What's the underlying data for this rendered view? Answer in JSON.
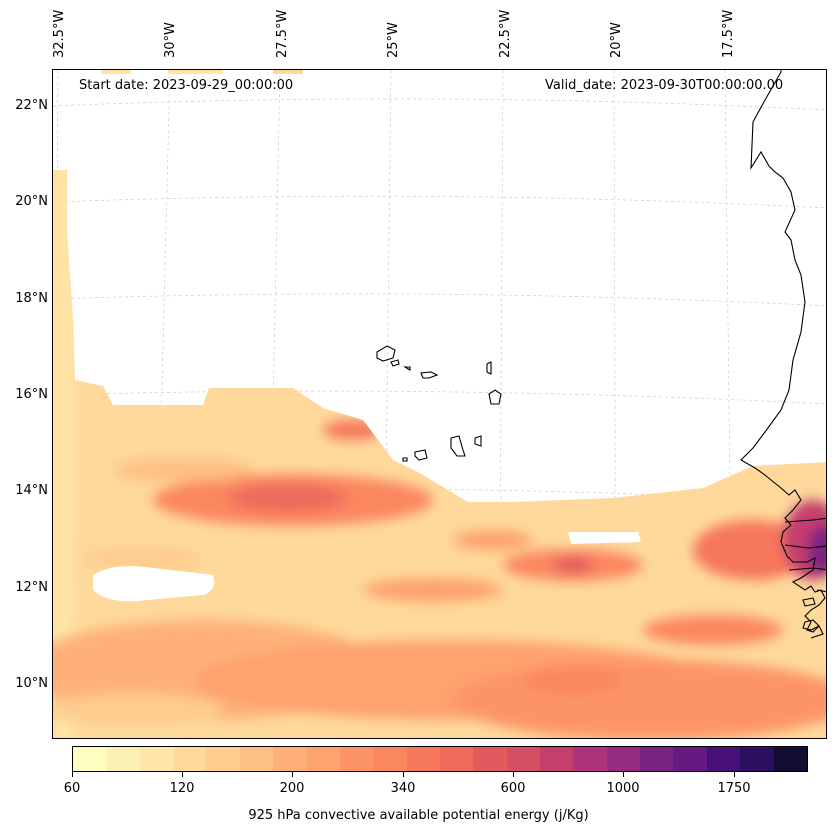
{
  "map": {
    "start_date": "Start date: 2023-09-29_00:00:00",
    "valid_date": "Valid_date: 2023-09-30T00:00:00.00",
    "lon_labels": [
      "32.5°W",
      "30°W",
      "27.5°W",
      "25°W",
      "22.5°W",
      "20°W",
      "17.5°W"
    ],
    "lat_labels": [
      "22°N",
      "20°N",
      "18°N",
      "16°N",
      "14°N",
      "12°N",
      "10°N"
    ],
    "extent": {
      "lon_min": -32.6,
      "lon_max": -15.3,
      "lat_min": 8.8,
      "lat_max": 22.8
    },
    "field": "925 hPa convective available potential energy",
    "gridlines": true
  },
  "colorbar": {
    "title": "925 hPa convective available potential energy (j/Kg)",
    "tick_labels": [
      "60",
      "120",
      "200",
      "340",
      "600",
      "1000",
      "1750"
    ],
    "colors": [
      "#fcfdbf",
      "#fcf1b4",
      "#fde6a8",
      "#fed99b",
      "#fecd90",
      "#febf84",
      "#feb078",
      "#fea26e",
      "#fd9467",
      "#fb8761",
      "#f6775c",
      "#ee6a5b",
      "#e35a5e",
      "#d44f63",
      "#c43e6e",
      "#ad347c",
      "#952c80",
      "#7b2382",
      "#641a80",
      "#4a1079",
      "#2d0f60",
      "#120d31"
    ],
    "cmap": "magma_r"
  }
}
